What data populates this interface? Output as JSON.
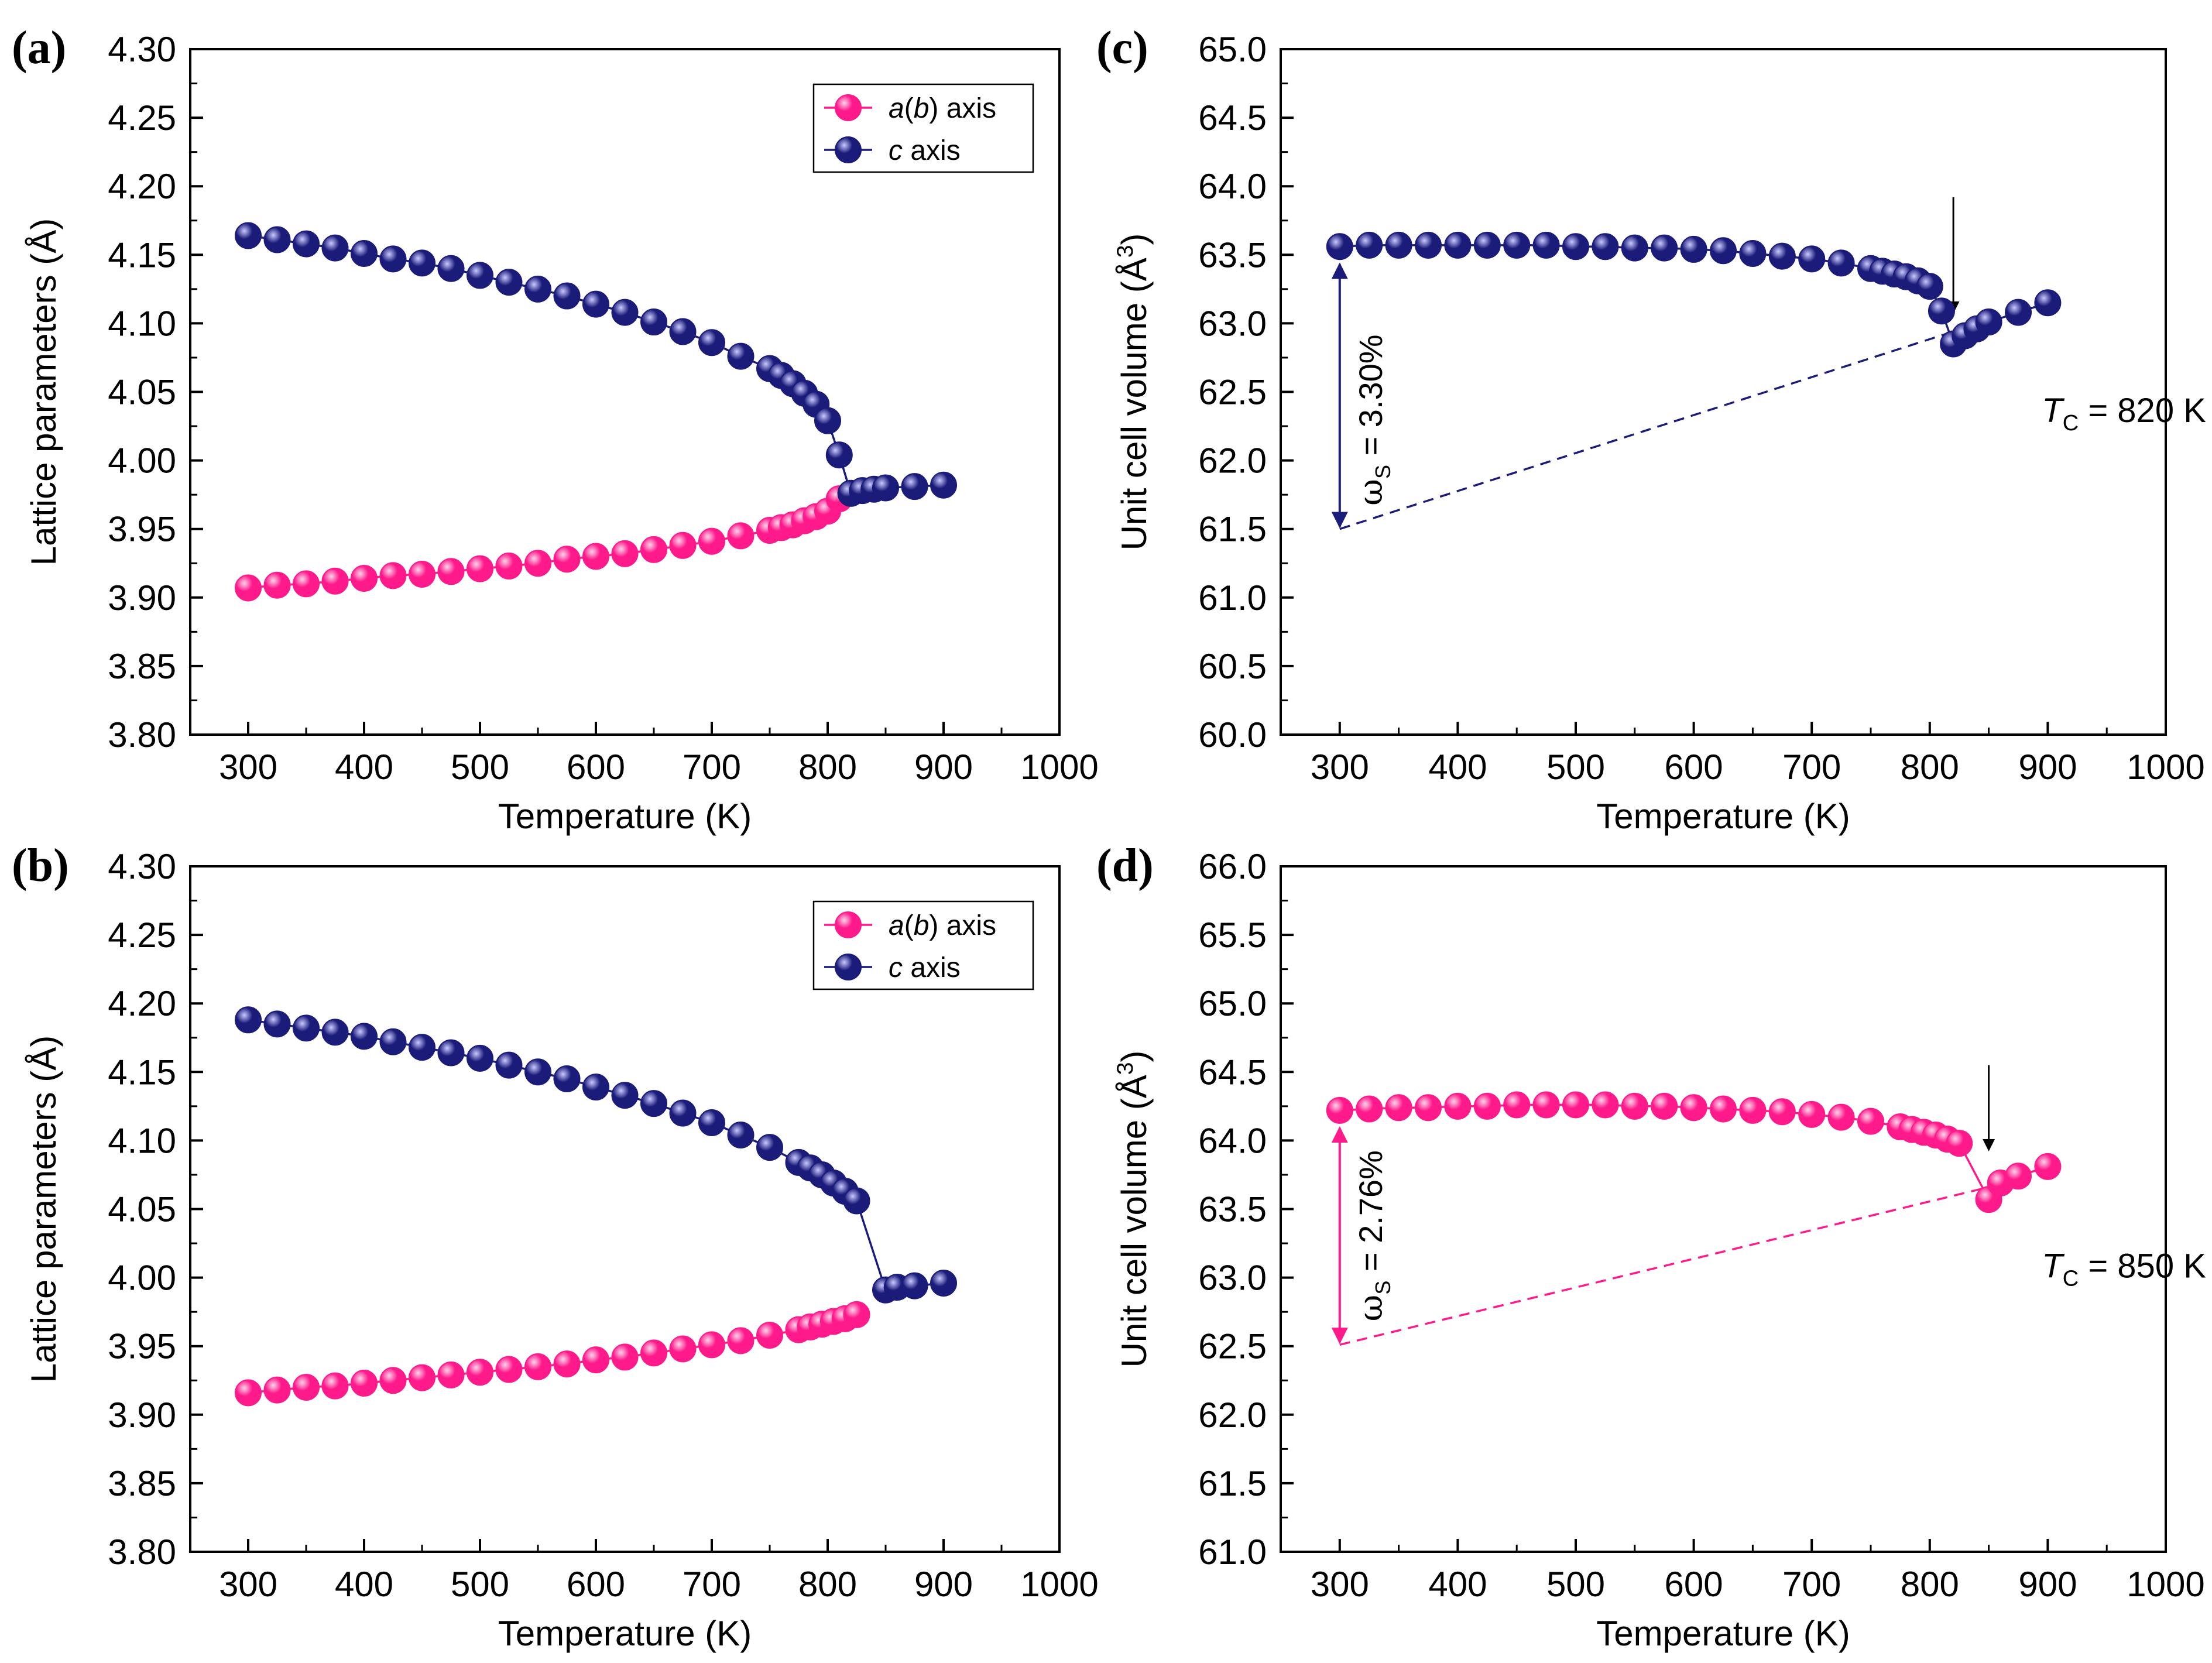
{
  "colors": {
    "pink": "#ff1a8c",
    "navy": "#1b1b7a",
    "axis": "#000000"
  },
  "chart_data": [
    {
      "panel": "(a)",
      "type": "scatter",
      "xlabel": "Temperature (K)",
      "ylabel": "Lattice parameters (Å)",
      "xlim": [
        250,
        1000
      ],
      "ylim": [
        3.8,
        4.3
      ],
      "x_ticks": [
        "300",
        "400",
        "500",
        "600",
        "700",
        "800",
        "900",
        "1000"
      ],
      "y_ticks": [
        "3.80",
        "3.85",
        "3.90",
        "3.95",
        "4.00",
        "4.05",
        "4.10",
        "4.15",
        "4.20",
        "4.25",
        "4.30"
      ],
      "legend": [
        "a(b) axis",
        "c axis"
      ],
      "series": [
        {
          "name": "a(b) axis",
          "color_key": "pink",
          "x": [
            300,
            325,
            350,
            375,
            400,
            425,
            450,
            475,
            500,
            525,
            550,
            575,
            600,
            625,
            650,
            675,
            700,
            725,
            750,
            760,
            770,
            780,
            790,
            800,
            810
          ],
          "y": [
            3.907,
            3.909,
            3.91,
            3.912,
            3.914,
            3.916,
            3.917,
            3.919,
            3.921,
            3.923,
            3.925,
            3.928,
            3.93,
            3.932,
            3.935,
            3.938,
            3.941,
            3.945,
            3.949,
            3.951,
            3.953,
            3.956,
            3.959,
            3.963,
            3.972
          ]
        },
        {
          "name": "c axis",
          "color_key": "navy",
          "x": [
            300,
            325,
            350,
            375,
            400,
            425,
            450,
            475,
            500,
            525,
            550,
            575,
            600,
            625,
            650,
            675,
            700,
            725,
            750,
            760,
            770,
            780,
            790,
            800,
            810,
            820,
            830,
            840,
            850,
            875,
            900
          ],
          "y": [
            4.164,
            4.161,
            4.158,
            4.155,
            4.151,
            4.147,
            4.144,
            4.14,
            4.135,
            4.13,
            4.125,
            4.12,
            4.114,
            4.108,
            4.101,
            4.094,
            4.086,
            4.076,
            4.067,
            4.062,
            4.056,
            4.049,
            4.041,
            4.029,
            4.004,
            3.976,
            3.978,
            3.979,
            3.98,
            3.981,
            3.982
          ]
        }
      ]
    },
    {
      "panel": "(c)",
      "type": "scatter",
      "xlabel": "Temperature (K)",
      "ylabel": "Unit cell volume (Å",
      "ylabel_sup": "3",
      "ylabel_close": ")",
      "xlim": [
        250,
        1000
      ],
      "ylim": [
        60.0,
        65.0
      ],
      "x_ticks": [
        "300",
        "400",
        "500",
        "600",
        "700",
        "800",
        "900",
        "1000"
      ],
      "y_ticks": [
        "60.0",
        "60.5",
        "61.0",
        "61.5",
        "62.0",
        "62.5",
        "63.0",
        "63.5",
        "64.0",
        "64.5",
        "65.0"
      ],
      "series": [
        {
          "name": "unit cell volume",
          "color_key": "navy",
          "x": [
            300,
            325,
            350,
            375,
            400,
            425,
            450,
            475,
            500,
            525,
            550,
            575,
            600,
            625,
            650,
            675,
            700,
            725,
            750,
            760,
            770,
            780,
            790,
            800,
            810,
            820,
            830,
            840,
            850,
            875,
            900
          ],
          "y": [
            63.56,
            63.57,
            63.57,
            63.57,
            63.57,
            63.57,
            63.57,
            63.57,
            63.56,
            63.56,
            63.55,
            63.55,
            63.54,
            63.53,
            63.51,
            63.49,
            63.47,
            63.44,
            63.4,
            63.38,
            63.36,
            63.34,
            63.31,
            63.27,
            63.09,
            62.85,
            62.91,
            62.96,
            63.01,
            63.08,
            63.15
          ]
        }
      ],
      "reference_line": {
        "x": [
          300,
          820
        ],
        "y": [
          61.5,
          62.94
        ]
      },
      "spread_arrow": {
        "x": 300,
        "y_from": 61.5,
        "y_to": 63.56
      },
      "tc_arrow": {
        "x": 820,
        "y_from": 63.92,
        "y_to": 63.08
      },
      "annotation_omega": "ω",
      "annotation_omega_sub": "S",
      "annotation_omega_value": " = 3.30%",
      "annotation_t": "T",
      "annotation_t_sub": "C",
      "annotation_t_value": " = 820 K",
      "annotation_t_pos": {
        "x": 895,
        "y": 62.28
      }
    },
    {
      "panel": "(b)",
      "type": "scatter",
      "xlabel": "Temperature (K)",
      "ylabel": "Lattice parameters (Å)",
      "xlim": [
        250,
        1000
      ],
      "ylim": [
        3.8,
        4.3
      ],
      "x_ticks": [
        "300",
        "400",
        "500",
        "600",
        "700",
        "800",
        "900",
        "1000"
      ],
      "y_ticks": [
        "3.80",
        "3.85",
        "3.90",
        "3.95",
        "4.00",
        "4.05",
        "4.10",
        "4.15",
        "4.20",
        "4.25",
        "4.30"
      ],
      "legend": [
        "a(b) axis",
        "c axis"
      ],
      "series": [
        {
          "name": "a(b) axis",
          "color_key": "pink",
          "x": [
            300,
            325,
            350,
            375,
            400,
            425,
            450,
            475,
            500,
            525,
            550,
            575,
            600,
            625,
            650,
            675,
            700,
            725,
            750,
            775,
            785,
            795,
            805,
            815,
            825
          ],
          "y": [
            3.916,
            3.918,
            3.92,
            3.921,
            3.923,
            3.925,
            3.927,
            3.929,
            3.931,
            3.933,
            3.935,
            3.937,
            3.94,
            3.942,
            3.945,
            3.948,
            3.951,
            3.954,
            3.958,
            3.962,
            3.964,
            3.966,
            3.968,
            3.97,
            3.973
          ]
        },
        {
          "name": "c axis",
          "color_key": "navy",
          "x": [
            300,
            325,
            350,
            375,
            400,
            425,
            450,
            475,
            500,
            525,
            550,
            575,
            600,
            625,
            650,
            675,
            700,
            725,
            750,
            775,
            785,
            795,
            805,
            815,
            825,
            850,
            860,
            875,
            900
          ],
          "y": [
            4.188,
            4.185,
            4.182,
            4.179,
            4.176,
            4.172,
            4.168,
            4.164,
            4.16,
            4.155,
            4.15,
            4.145,
            4.139,
            4.133,
            4.127,
            4.12,
            4.113,
            4.104,
            4.095,
            4.084,
            4.08,
            4.075,
            4.069,
            4.063,
            4.056,
            3.991,
            3.993,
            3.994,
            3.996
          ]
        }
      ]
    },
    {
      "panel": "(d)",
      "type": "scatter",
      "xlabel": "Temperature (K)",
      "ylabel": "Unit cell volume (Å",
      "ylabel_sup": "3",
      "ylabel_close": ")",
      "xlim": [
        250,
        1000
      ],
      "ylim": [
        61.0,
        66.0
      ],
      "x_ticks": [
        "300",
        "400",
        "500",
        "600",
        "700",
        "800",
        "900",
        "1000"
      ],
      "y_ticks": [
        "61.0",
        "61.5",
        "62.0",
        "62.5",
        "63.0",
        "63.5",
        "64.0",
        "64.5",
        "65.0",
        "65.5",
        "66.0"
      ],
      "series": [
        {
          "name": "unit cell volume",
          "color_key": "pink",
          "x": [
            300,
            325,
            350,
            375,
            400,
            425,
            450,
            475,
            500,
            525,
            550,
            575,
            600,
            625,
            650,
            675,
            700,
            725,
            750,
            775,
            785,
            795,
            805,
            815,
            825,
            850,
            860,
            875,
            900
          ],
          "y": [
            64.22,
            64.23,
            64.24,
            64.24,
            64.25,
            64.25,
            64.26,
            64.26,
            64.26,
            64.26,
            64.25,
            64.25,
            64.24,
            64.23,
            64.22,
            64.21,
            64.19,
            64.17,
            64.14,
            64.1,
            64.08,
            64.06,
            64.04,
            64.01,
            63.98,
            63.57,
            63.69,
            63.74,
            63.81
          ]
        }
      ],
      "reference_line": {
        "x": [
          300,
          850
        ],
        "y": [
          62.51,
          63.66
        ]
      },
      "spread_arrow": {
        "x": 300,
        "y_from": 62.51,
        "y_to": 64.22
      },
      "tc_arrow": {
        "x": 850,
        "y_from": 64.55,
        "y_to": 63.93
      },
      "annotation_omega": "ω",
      "annotation_omega_sub": "S",
      "annotation_omega_value": " = 2.76%",
      "annotation_t": "T",
      "annotation_t_sub": "C",
      "annotation_t_value": " = 850 K",
      "annotation_t_pos": {
        "x": 895,
        "y": 63.0
      }
    }
  ]
}
